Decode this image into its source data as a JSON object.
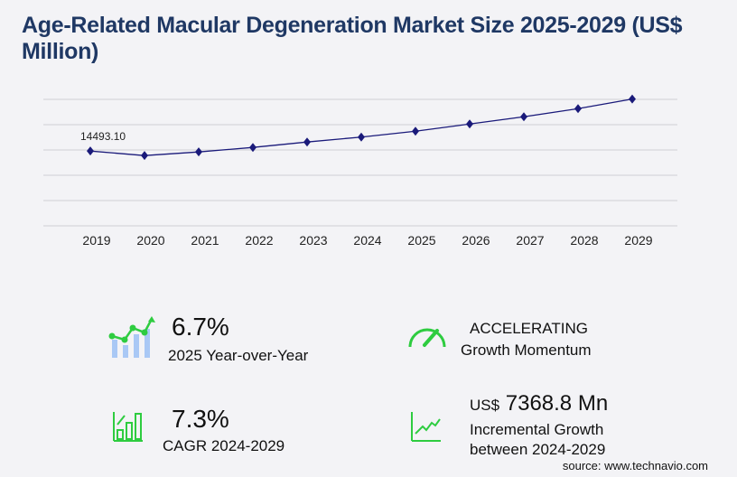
{
  "title": "Age-Related Macular Degeneration Market Size 2025-2029 (US$ Million)",
  "chart_data": {
    "type": "line",
    "title": "Age-Related Macular Degeneration Market Size 2025-2029 (US$ Million)",
    "categories": [
      "2019",
      "2020",
      "2021",
      "2022",
      "2023",
      "2024",
      "2025",
      "2026",
      "2027",
      "2028",
      "2029"
    ],
    "values": [
      14493.1,
      13620,
      14320,
      15190,
      16240,
      17200,
      18330,
      19730,
      21130,
      22700,
      24570
    ],
    "data_labels": [
      {
        "index": 0,
        "text": "14493.10"
      }
    ],
    "ylim": [
      0,
      24500
    ],
    "grid": true,
    "line_color": "#1a1a7a",
    "marker": "diamond"
  },
  "stats": {
    "yoy_value": "6.7%",
    "yoy_label": "2025 Year-over-Year",
    "momentum_value": "ACCELERATING",
    "momentum_label": "Growth Momentum",
    "cagr_value": "7.3%",
    "cagr_label": "CAGR 2024-2029",
    "incr_prefix": "US$",
    "incr_value": "7368.8 Mn",
    "incr_label1": "Incremental Growth",
    "incr_label2": "between 2024-2029"
  },
  "icons": {
    "accent": "#2ecc40",
    "bar_light": "#a9c8f5"
  },
  "source": "source: www.technavio.com"
}
